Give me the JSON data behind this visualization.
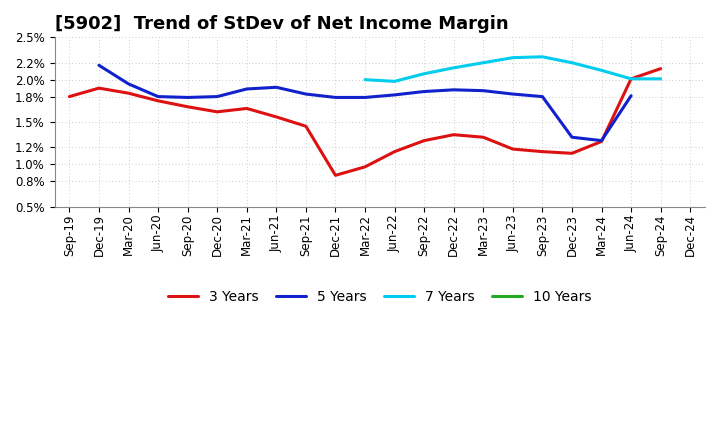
{
  "title": "[5902]  Trend of StDev of Net Income Margin",
  "x_labels": [
    "Sep-19",
    "Dec-19",
    "Mar-20",
    "Jun-20",
    "Sep-20",
    "Dec-20",
    "Mar-21",
    "Jun-21",
    "Sep-21",
    "Dec-21",
    "Mar-22",
    "Jun-22",
    "Sep-22",
    "Dec-22",
    "Mar-23",
    "Jun-23",
    "Sep-23",
    "Dec-23",
    "Mar-24",
    "Jun-24",
    "Sep-24",
    "Dec-24"
  ],
  "series_3y": [
    0.018,
    0.019,
    0.0184,
    0.0175,
    0.0168,
    0.0162,
    0.0166,
    0.0156,
    0.0145,
    0.0087,
    0.0097,
    0.0115,
    0.0128,
    0.0135,
    0.0132,
    0.0118,
    0.0115,
    0.0113,
    0.0127,
    0.0201,
    0.0213,
    null
  ],
  "series_5y": [
    null,
    0.0217,
    0.0195,
    0.018,
    0.0179,
    0.018,
    0.0189,
    0.0191,
    0.0183,
    0.0179,
    0.0179,
    0.0182,
    0.0186,
    0.0188,
    0.0187,
    0.0183,
    0.018,
    0.0132,
    0.0128,
    0.0181,
    null,
    null
  ],
  "series_7y": [
    null,
    null,
    null,
    null,
    null,
    null,
    null,
    null,
    null,
    null,
    0.02,
    0.0198,
    0.0207,
    0.0214,
    0.022,
    0.0226,
    0.0227,
    0.022,
    0.0211,
    0.0201,
    0.0201,
    null
  ],
  "series_10y": [
    null,
    null,
    null,
    null,
    null,
    null,
    null,
    null,
    null,
    null,
    null,
    null,
    null,
    null,
    null,
    null,
    null,
    null,
    null,
    null,
    null,
    null
  ],
  "color_3y": "#dd1111",
  "color_5y": "#1122cc",
  "color_7y": "#00ccee",
  "color_10y": "#22aa22",
  "ylim_low": 0.005,
  "ylim_high": 0.025,
  "yticks": [
    0.005,
    0.008,
    0.01,
    0.012,
    0.015,
    0.018,
    0.02,
    0.022,
    0.025
  ],
  "background_color": "#ffffff",
  "grid_color": "#bbbbbb",
  "legend_labels": [
    "3 Years",
    "5 Years",
    "7 Years",
    "10 Years"
  ],
  "title_fontsize": 13,
  "tick_fontsize": 8.5,
  "linewidth": 2.2
}
